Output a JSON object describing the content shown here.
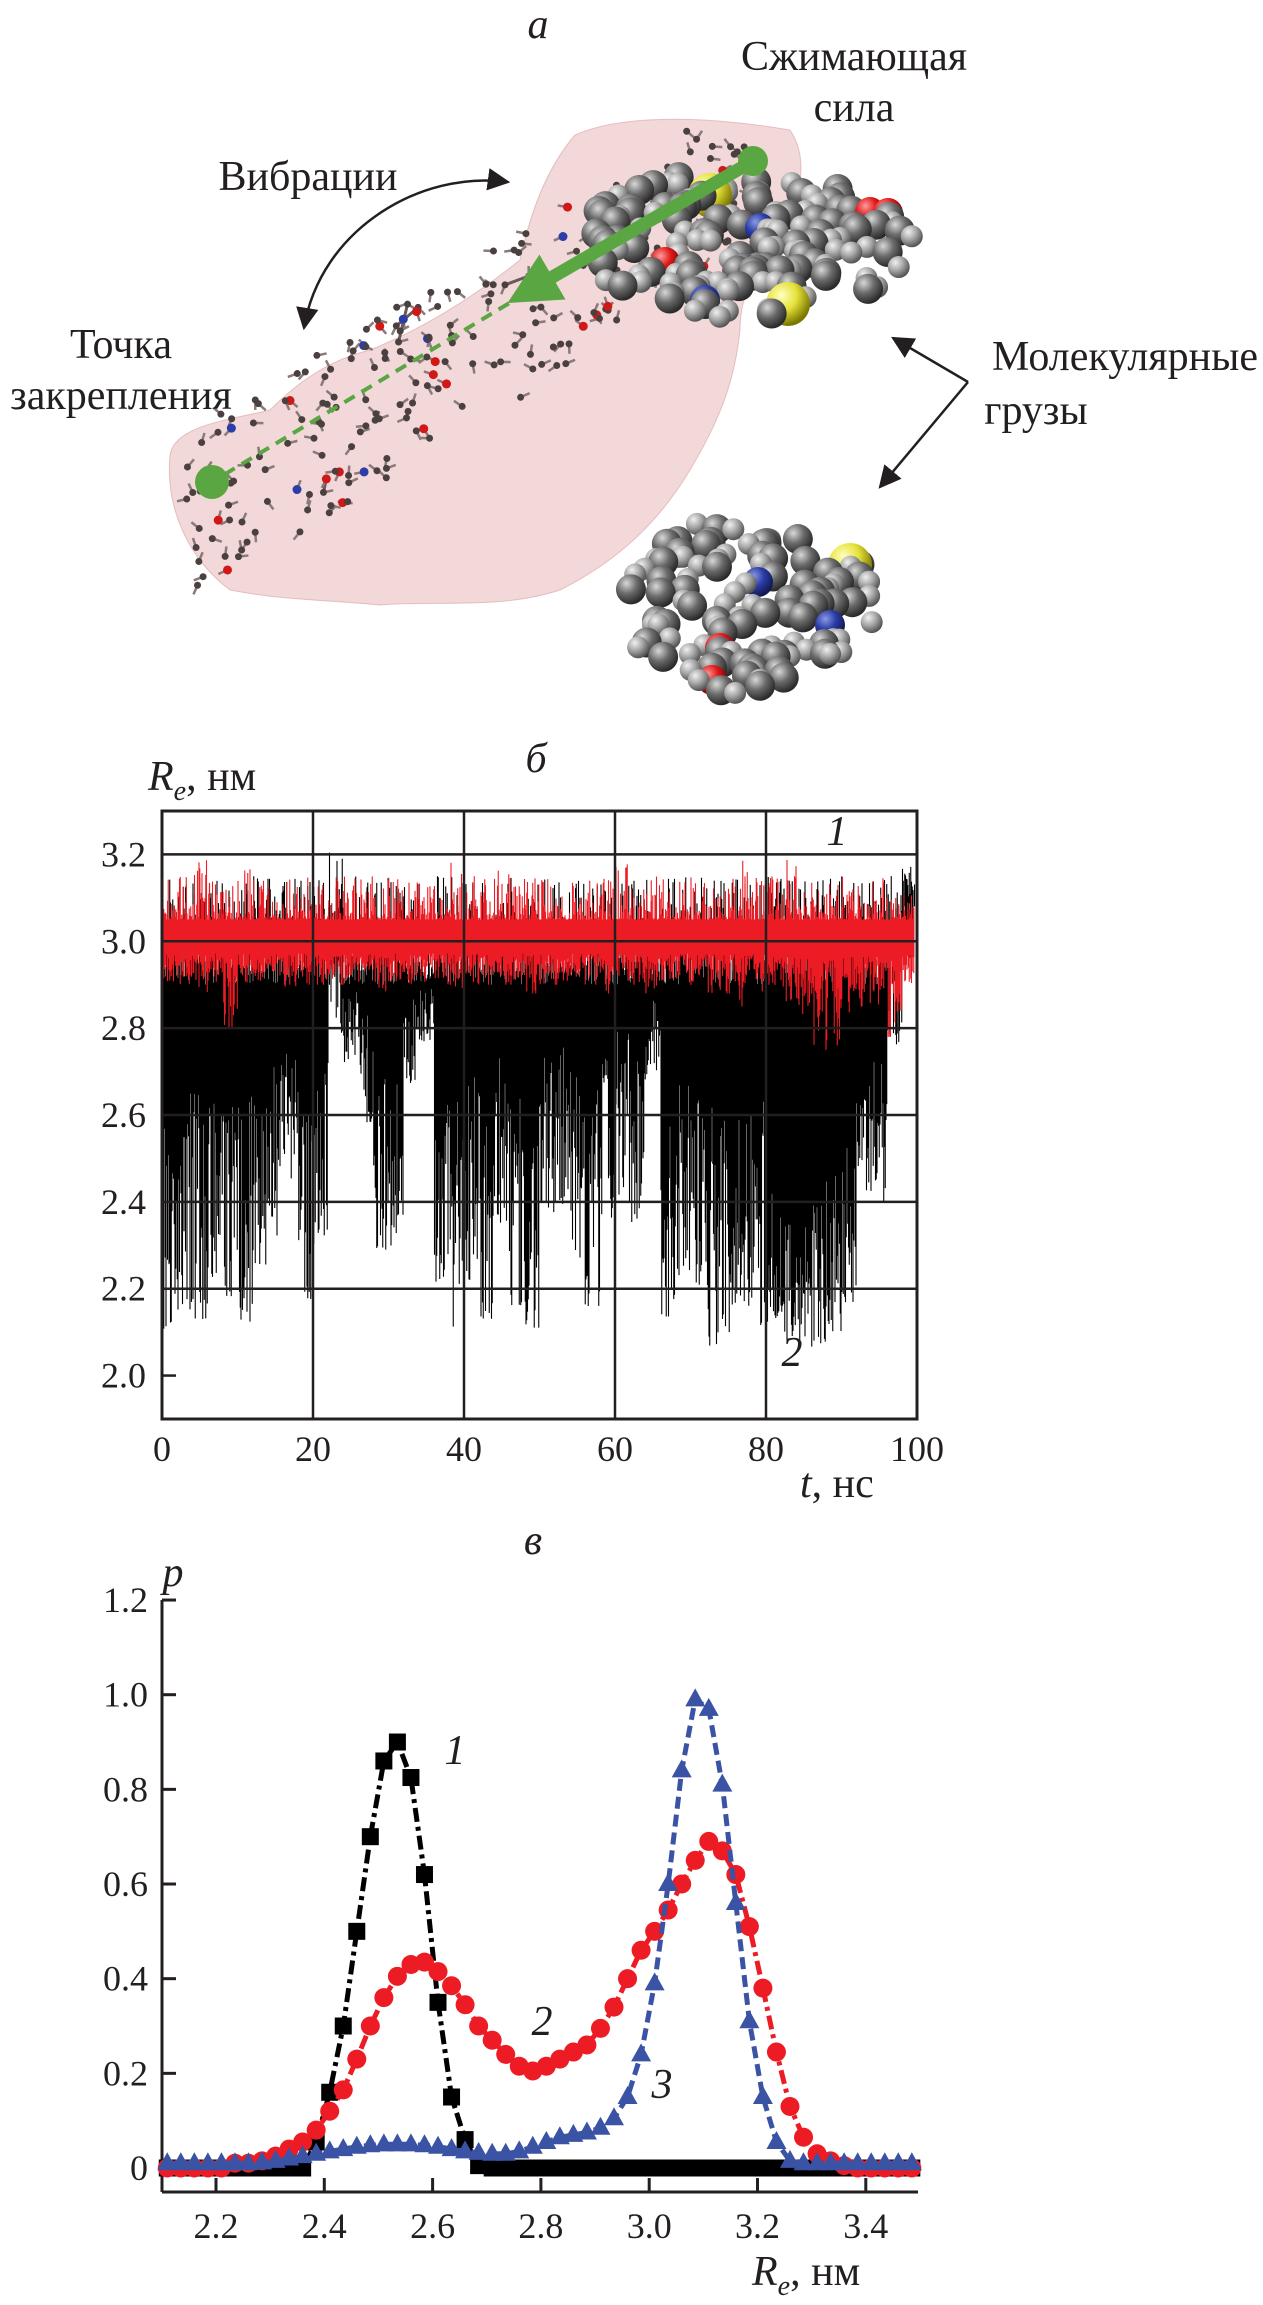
{
  "panel_a": {
    "label": "а",
    "force_label_line1": "Сжимающая",
    "force_label_line2": "сила",
    "vibration_label": "Вибрации",
    "anchor_label_line1": "Точка",
    "anchor_label_line2": "закрепления",
    "cargo_label_line1": "Молекулярные",
    "cargo_label_line2": "грузы",
    "colors": {
      "surface": "#e8b8b8",
      "force_vector": "#5aa642",
      "carbon": "#5a5a5a",
      "oxygen": "#e01818",
      "nitrogen": "#2c3ca8",
      "sulfur": "#e6e23a"
    }
  },
  "chart_data": [
    {
      "panel_label": "б",
      "type": "line",
      "ylabel_symbol": "R",
      "ylabel_sub": "e",
      "ylabel_unit": ", нм",
      "xlabel_symbol": "t",
      "xlabel_unit": ", нс",
      "xlim": [
        0,
        100
      ],
      "ylim": [
        1.9,
        3.3
      ],
      "xticks": [
        "0",
        "20",
        "40",
        "60",
        "80",
        "100"
      ],
      "yticks": [
        "2.0",
        "2.2",
        "2.4",
        "2.6",
        "2.8",
        "3.0",
        "3.2"
      ],
      "grid": true,
      "window_centers_ns": [
        1,
        3,
        5,
        7,
        9,
        11,
        13,
        15,
        17,
        19,
        21,
        23,
        25,
        27,
        29,
        31,
        33,
        35,
        37,
        39,
        41,
        43,
        45,
        47,
        49,
        51,
        53,
        55,
        57,
        59,
        61,
        63,
        65,
        67,
        69,
        71,
        73,
        75,
        77,
        79,
        81,
        83,
        85,
        87,
        89,
        91,
        93,
        95,
        97,
        99
      ],
      "series": [
        {
          "name": "1",
          "color": "#ed1c24",
          "min": [
            2.9,
            2.9,
            2.88,
            2.9,
            2.79,
            2.9,
            2.9,
            2.9,
            2.88,
            2.9,
            2.9,
            2.9,
            2.9,
            2.9,
            2.88,
            2.9,
            2.9,
            2.9,
            2.9,
            2.88,
            2.9,
            2.9,
            2.9,
            2.9,
            2.88,
            2.9,
            2.9,
            2.9,
            2.9,
            2.88,
            2.9,
            2.9,
            2.88,
            2.9,
            2.9,
            2.88,
            2.88,
            2.88,
            2.85,
            2.88,
            2.88,
            2.86,
            2.82,
            2.75,
            2.76,
            2.82,
            2.85,
            2.85,
            2.78,
            2.88
          ],
          "max": [
            3.15,
            3.15,
            3.2,
            3.15,
            3.15,
            3.19,
            3.15,
            3.15,
            3.15,
            3.15,
            3.15,
            3.19,
            3.15,
            3.15,
            3.15,
            3.15,
            3.15,
            3.15,
            3.15,
            3.19,
            3.15,
            3.15,
            3.19,
            3.15,
            3.15,
            3.15,
            3.15,
            3.15,
            3.15,
            3.15,
            3.19,
            3.15,
            3.15,
            3.15,
            3.15,
            3.15,
            3.15,
            3.15,
            3.19,
            3.15,
            3.15,
            3.19,
            3.15,
            3.15,
            3.15,
            3.15,
            3.19,
            3.15,
            3.15,
            3.16
          ]
        },
        {
          "name": "2",
          "color": "#000000",
          "min": [
            2.1,
            2.15,
            2.13,
            2.22,
            2.18,
            2.12,
            2.25,
            2.32,
            2.45,
            2.17,
            2.3,
            2.78,
            2.72,
            2.58,
            2.29,
            2.29,
            2.67,
            2.77,
            2.18,
            2.11,
            2.22,
            2.13,
            2.35,
            2.16,
            2.11,
            2.34,
            2.39,
            2.27,
            2.16,
            2.35,
            2.39,
            2.34,
            2.67,
            2.13,
            2.23,
            2.2,
            2.05,
            2.09,
            2.16,
            2.1,
            2.12,
            2.07,
            2.08,
            2.05,
            2.1,
            2.16,
            2.41,
            2.4,
            2.76,
            2.95
          ],
          "max": [
            3.0,
            3.0,
            3.0,
            3.0,
            3.0,
            3.0,
            3.0,
            3.0,
            3.0,
            3.0,
            3.0,
            3.21,
            3.0,
            3.0,
            3.0,
            3.0,
            3.0,
            3.0,
            3.0,
            3.0,
            3.0,
            3.0,
            3.0,
            3.0,
            3.0,
            3.0,
            3.0,
            3.0,
            3.0,
            3.0,
            3.18,
            3.0,
            3.0,
            3.0,
            3.0,
            3.0,
            3.0,
            3.0,
            3.0,
            3.0,
            2.62,
            2.55,
            2.62,
            2.7,
            2.75,
            2.8,
            2.85,
            2.95,
            3.18,
            3.18
          ]
        }
      ]
    },
    {
      "panel_label": "в",
      "type": "line",
      "ylabel": "p",
      "xlabel_symbol": "R",
      "xlabel_sub": "e",
      "xlabel_unit": ", нм",
      "xlim": [
        2.1,
        3.5
      ],
      "ylim": [
        -0.05,
        1.2
      ],
      "xticks": [
        "2.2",
        "2.4",
        "2.6",
        "2.8",
        "3.0",
        "3.2",
        "3.4"
      ],
      "yticks": [
        "0",
        "0.2",
        "0.4",
        "0.6",
        "0.8",
        "1.0",
        "1.2"
      ],
      "grid": false,
      "x": [
        2.11,
        2.135,
        2.16,
        2.185,
        2.21,
        2.235,
        2.26,
        2.285,
        2.31,
        2.335,
        2.36,
        2.385,
        2.41,
        2.435,
        2.46,
        2.485,
        2.51,
        2.535,
        2.56,
        2.585,
        2.61,
        2.635,
        2.66,
        2.685,
        2.71,
        2.735,
        2.76,
        2.785,
        2.81,
        2.835,
        2.86,
        2.885,
        2.91,
        2.935,
        2.96,
        2.985,
        3.01,
        3.035,
        3.06,
        3.085,
        3.11,
        3.135,
        3.16,
        3.185,
        3.21,
        3.235,
        3.26,
        3.285,
        3.31,
        3.335,
        3.36,
        3.385,
        3.41,
        3.435,
        3.46,
        3.485
      ],
      "series": [
        {
          "name": "1",
          "marker": "square",
          "line": "dash-dot",
          "color": "#000000",
          "values": [
            0,
            0,
            0,
            0,
            0,
            0,
            0,
            0,
            0,
            0,
            0,
            0.055,
            0.16,
            0.3,
            0.5,
            0.7,
            0.86,
            0.9,
            0.825,
            0.62,
            0.35,
            0.15,
            0.06,
            0.005,
            0,
            0,
            0,
            0,
            0,
            0,
            0,
            0,
            0,
            0,
            0,
            0,
            0,
            0,
            0,
            0,
            0,
            0,
            0,
            0,
            0,
            0,
            0,
            0,
            0,
            0,
            0,
            0,
            0,
            0,
            0,
            0
          ]
        },
        {
          "name": "2",
          "marker": "circle",
          "line": "dash-dot",
          "color": "#ed1c24",
          "values": [
            0,
            0,
            0,
            0,
            0,
            0.01,
            0.01,
            0.015,
            0.025,
            0.04,
            0.055,
            0.08,
            0.12,
            0.165,
            0.23,
            0.3,
            0.36,
            0.405,
            0.43,
            0.435,
            0.415,
            0.385,
            0.345,
            0.3,
            0.27,
            0.24,
            0.215,
            0.205,
            0.215,
            0.23,
            0.245,
            0.26,
            0.295,
            0.34,
            0.4,
            0.46,
            0.5,
            0.545,
            0.6,
            0.65,
            0.69,
            0.67,
            0.62,
            0.51,
            0.38,
            0.245,
            0.13,
            0.065,
            0.03,
            0.015,
            0.005,
            0,
            0,
            0,
            0,
            0
          ]
        },
        {
          "name": "3",
          "marker": "triangle",
          "line": "dash",
          "color": "#3a53a4",
          "values": [
            0.01,
            0.01,
            0.01,
            0.01,
            0.01,
            0.01,
            0.01,
            0.012,
            0.015,
            0.02,
            0.025,
            0.03,
            0.035,
            0.04,
            0.045,
            0.048,
            0.05,
            0.05,
            0.05,
            0.048,
            0.045,
            0.04,
            0.035,
            0.032,
            0.03,
            0.03,
            0.035,
            0.045,
            0.055,
            0.065,
            0.07,
            0.075,
            0.085,
            0.105,
            0.15,
            0.24,
            0.39,
            0.6,
            0.84,
            0.99,
            0.97,
            0.81,
            0.56,
            0.31,
            0.15,
            0.055,
            0.015,
            0.01,
            0.01,
            0.01,
            0.01,
            0.01,
            0.01,
            0.01,
            0.01,
            0.01
          ]
        }
      ]
    }
  ]
}
